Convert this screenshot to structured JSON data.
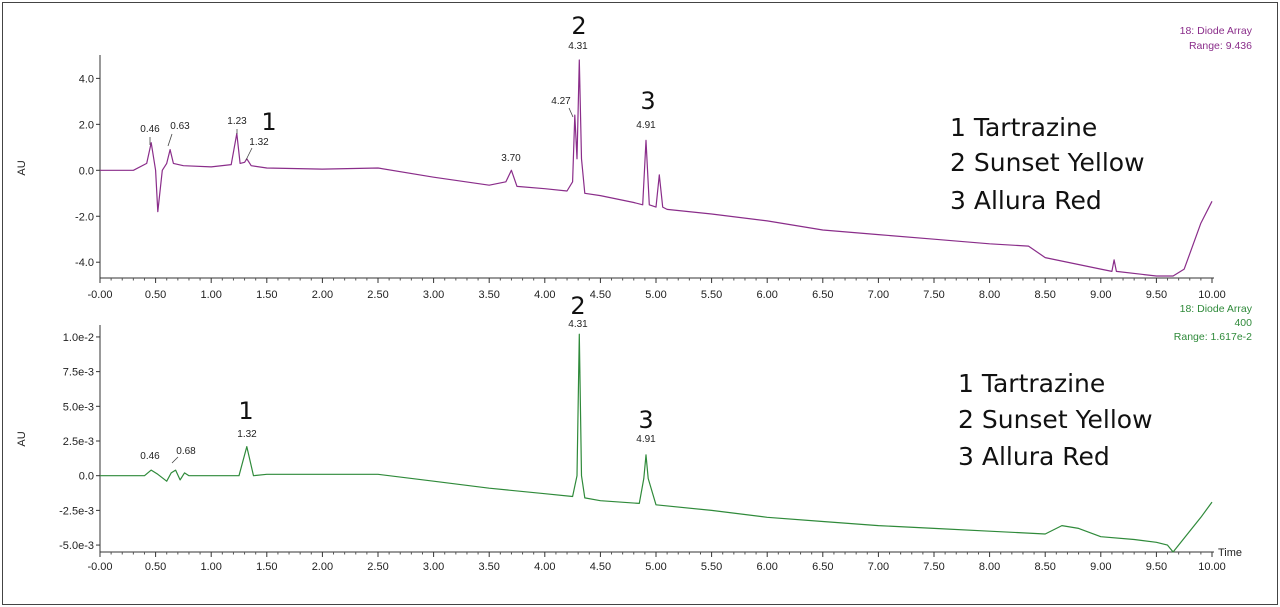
{
  "chart_data": [
    {
      "type": "line",
      "color": "#8a2d8a",
      "ylabel": "AU",
      "xlim": [
        0,
        10
      ],
      "ylim": [
        -4.6,
        4.8
      ],
      "xticks": [
        "-0.00",
        "0.50",
        "1.00",
        "1.50",
        "2.00",
        "2.50",
        "3.00",
        "3.50",
        "4.00",
        "4.50",
        "5.00",
        "5.50",
        "6.00",
        "6.50",
        "7.00",
        "7.50",
        "8.00",
        "8.50",
        "9.00",
        "9.50",
        "10.00"
      ],
      "yticks": [
        {
          "value": 4.0,
          "label": "4.0"
        },
        {
          "value": 2.0,
          "label": "2.0"
        },
        {
          "value": 0.0,
          "label": "0.0"
        },
        {
          "value": -2.0,
          "label": "-2.0"
        },
        {
          "value": -4.0,
          "label": "-4.0"
        }
      ],
      "info": [
        "18: Diode Array",
        "Range: 9.436"
      ],
      "peak_labels": [
        "0.46",
        "0.63",
        "1.23",
        "1.32",
        "3.70",
        "4.27",
        "4.31",
        "4.91"
      ],
      "peak_numbers": [
        {
          "text": "1",
          "x": 1.32
        },
        {
          "text": "2",
          "x": 4.31
        },
        {
          "text": "3",
          "x": 4.91
        }
      ],
      "legend": [
        "1 Tartrazine",
        "2 Sunset Yellow",
        "3 Allura Red"
      ],
      "series": [
        {
          "x": [
            0.0,
            0.3,
            0.42,
            0.46,
            0.5,
            0.52,
            0.56,
            0.6,
            0.63,
            0.66,
            0.75,
            1.0,
            1.18,
            1.23,
            1.26,
            1.3,
            1.32,
            1.36,
            1.5,
            2.0,
            2.5,
            3.0,
            3.5,
            3.65,
            3.7,
            3.75,
            4.0,
            4.2,
            4.25,
            4.27,
            4.29,
            4.31,
            4.33,
            4.36,
            4.5,
            4.8,
            4.88,
            4.91,
            4.94,
            5.0,
            5.03,
            5.06,
            5.1,
            5.5,
            6.0,
            6.5,
            7.0,
            7.5,
            8.0,
            8.35,
            8.5,
            9.0,
            9.1,
            9.12,
            9.14,
            9.5,
            9.65,
            9.75,
            9.9,
            10.0
          ],
          "y": [
            0.0,
            0.0,
            0.3,
            1.2,
            0.0,
            -1.8,
            0.0,
            0.3,
            0.9,
            0.3,
            0.2,
            0.15,
            0.25,
            1.6,
            0.3,
            0.35,
            0.5,
            0.2,
            0.1,
            0.05,
            0.1,
            -0.3,
            -0.65,
            -0.5,
            0.0,
            -0.7,
            -0.8,
            -0.9,
            -0.5,
            2.4,
            0.5,
            4.8,
            0.5,
            -1.0,
            -1.1,
            -1.4,
            -1.5,
            1.3,
            -1.5,
            -1.6,
            -0.2,
            -1.6,
            -1.7,
            -1.9,
            -2.2,
            -2.6,
            -2.8,
            -3.0,
            -3.2,
            -3.3,
            -3.8,
            -4.3,
            -4.4,
            -3.9,
            -4.4,
            -4.6,
            -4.6,
            -4.3,
            -2.3,
            -1.35
          ]
        }
      ]
    },
    {
      "type": "line",
      "color": "#2f8a3a",
      "ylabel": "AU",
      "xlabel": "Time",
      "xlim": [
        0,
        10
      ],
      "ylim": [
        -0.0055,
        0.0105
      ],
      "xticks": [
        "-0.00",
        "0.50",
        "1.00",
        "1.50",
        "2.00",
        "2.50",
        "3.00",
        "3.50",
        "4.00",
        "4.50",
        "5.00",
        "5.50",
        "6.00",
        "6.50",
        "7.00",
        "7.50",
        "8.00",
        "8.50",
        "9.00",
        "9.50",
        "10.00"
      ],
      "yticks": [
        {
          "value": 0.01,
          "label": "1.0e-2"
        },
        {
          "value": 0.0075,
          "label": "7.5e-3"
        },
        {
          "value": 0.005,
          "label": "5.0e-3"
        },
        {
          "value": 0.0025,
          "label": "2.5e-3"
        },
        {
          "value": 0.0,
          "label": "0.0"
        },
        {
          "value": -0.0025,
          "label": "-2.5e-3"
        },
        {
          "value": -0.005,
          "label": "-5.0e-3"
        }
      ],
      "info": [
        "18: Diode Array",
        "400",
        "Range: 1.617e-2"
      ],
      "peak_labels": [
        "0.46",
        "0.68",
        "1.32",
        "4.31",
        "4.91"
      ],
      "peak_numbers": [
        {
          "text": "1",
          "x": 1.32
        },
        {
          "text": "2",
          "x": 4.31
        },
        {
          "text": "3",
          "x": 4.91
        }
      ],
      "legend": [
        "1 Tartrazine",
        "2 Sunset Yellow",
        "3 Allura Red"
      ],
      "series": [
        {
          "x": [
            0.0,
            0.4,
            0.46,
            0.52,
            0.6,
            0.64,
            0.68,
            0.72,
            0.76,
            0.8,
            1.0,
            1.25,
            1.32,
            1.38,
            1.5,
            2.0,
            2.5,
            3.0,
            3.5,
            4.0,
            4.25,
            4.29,
            4.31,
            4.33,
            4.36,
            4.5,
            4.85,
            4.89,
            4.91,
            4.93,
            5.0,
            5.5,
            6.0,
            6.5,
            7.0,
            7.5,
            8.0,
            8.5,
            8.65,
            8.8,
            9.0,
            9.3,
            9.5,
            9.6,
            9.65,
            9.75,
            9.9,
            10.0
          ],
          "y": [
            0.0,
            0.0,
            0.0004,
            0.0001,
            -0.0004,
            0.0002,
            0.0004,
            -0.0003,
            0.0002,
            0.0,
            0.0,
            0.0,
            0.0021,
            0.0,
            0.0001,
            0.0001,
            0.0001,
            -0.0004,
            -0.0009,
            -0.0013,
            -0.0015,
            0.0,
            0.0102,
            0.0,
            -0.0016,
            -0.0018,
            -0.002,
            -0.0002,
            0.0015,
            -0.0002,
            -0.0021,
            -0.0025,
            -0.003,
            -0.0033,
            -0.0036,
            -0.0038,
            -0.004,
            -0.0042,
            -0.0036,
            -0.0038,
            -0.0044,
            -0.0046,
            -0.0048,
            -0.005,
            -0.0055,
            -0.0045,
            -0.003,
            -0.0019
          ]
        }
      ]
    }
  ]
}
